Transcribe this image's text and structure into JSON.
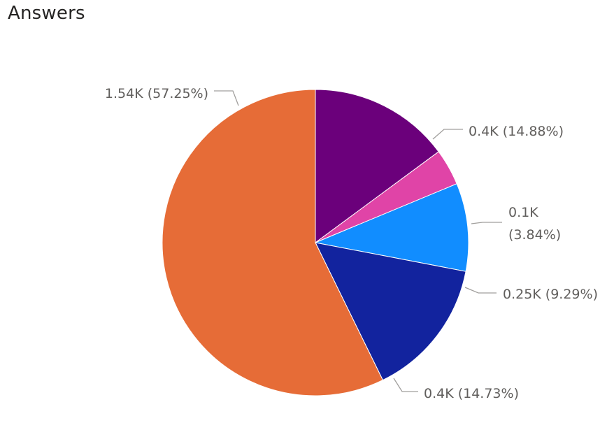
{
  "visual": {
    "title": "Answers"
  },
  "chart_data": {
    "type": "pie",
    "title": "Answers",
    "start_angle_deg": 90,
    "direction": "clockwise",
    "legend": "none",
    "slices": [
      {
        "value": 0.4,
        "percent": 14.88,
        "label": "0.4K (14.88%)",
        "color": "#6B007B"
      },
      {
        "value": 0.1,
        "percent": 3.84,
        "label": "0.1K (3.84%)",
        "color": "#E044A7"
      },
      {
        "value": 0.25,
        "percent": 9.29,
        "label": "0.25K (9.29%)",
        "color": "#118DFF"
      },
      {
        "value": 0.4,
        "percent": 14.73,
        "label": "0.4K (14.73%)",
        "color": "#12239E"
      },
      {
        "value": 1.54,
        "percent": 57.25,
        "label": "1.54K (57.25%)",
        "color": "#E66C37"
      }
    ]
  }
}
